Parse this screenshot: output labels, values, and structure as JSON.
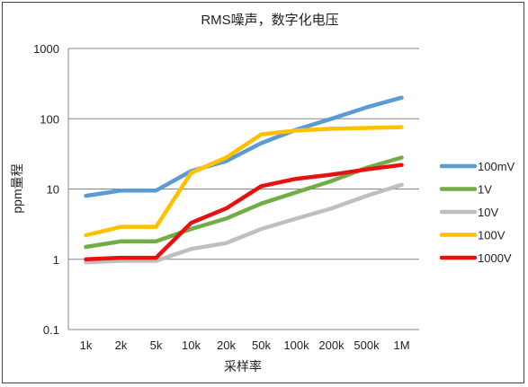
{
  "chart_data": {
    "type": "line",
    "title": "RMS噪声，数字化电压",
    "xlabel": "采样率",
    "ylabel": "ppm量程",
    "yscale": "log",
    "ylim": [
      0.1,
      1000
    ],
    "y_ticks": [
      "0.1",
      "1",
      "10",
      "100",
      "1000"
    ],
    "categories": [
      "1k",
      "2k",
      "5k",
      "10k",
      "20k",
      "50k",
      "100k",
      "200k",
      "500k",
      "1M"
    ],
    "grid": "horizontal",
    "legend_position": "right",
    "series": [
      {
        "name": "100mV",
        "color": "#5B9BD5",
        "values": [
          8,
          9.5,
          9.5,
          18,
          25,
          45,
          70,
          100,
          145,
          200
        ]
      },
      {
        "name": "1V",
        "color": "#70AD47",
        "values": [
          1.5,
          1.8,
          1.8,
          2.7,
          3.8,
          6.2,
          9,
          13,
          20,
          28
        ]
      },
      {
        "name": "10V",
        "color": "#BFBFBF",
        "values": [
          0.9,
          0.95,
          0.95,
          1.4,
          1.7,
          2.7,
          3.8,
          5.3,
          8,
          11.5
        ]
      },
      {
        "name": "100V",
        "color": "#FFC000",
        "values": [
          2.2,
          2.9,
          2.9,
          17,
          28,
          60,
          68,
          72,
          74,
          76
        ]
      },
      {
        "name": "1000V",
        "color": "#E81010",
        "values": [
          1.0,
          1.05,
          1.05,
          3.3,
          5.3,
          11,
          14,
          16,
          19,
          22
        ]
      }
    ]
  }
}
